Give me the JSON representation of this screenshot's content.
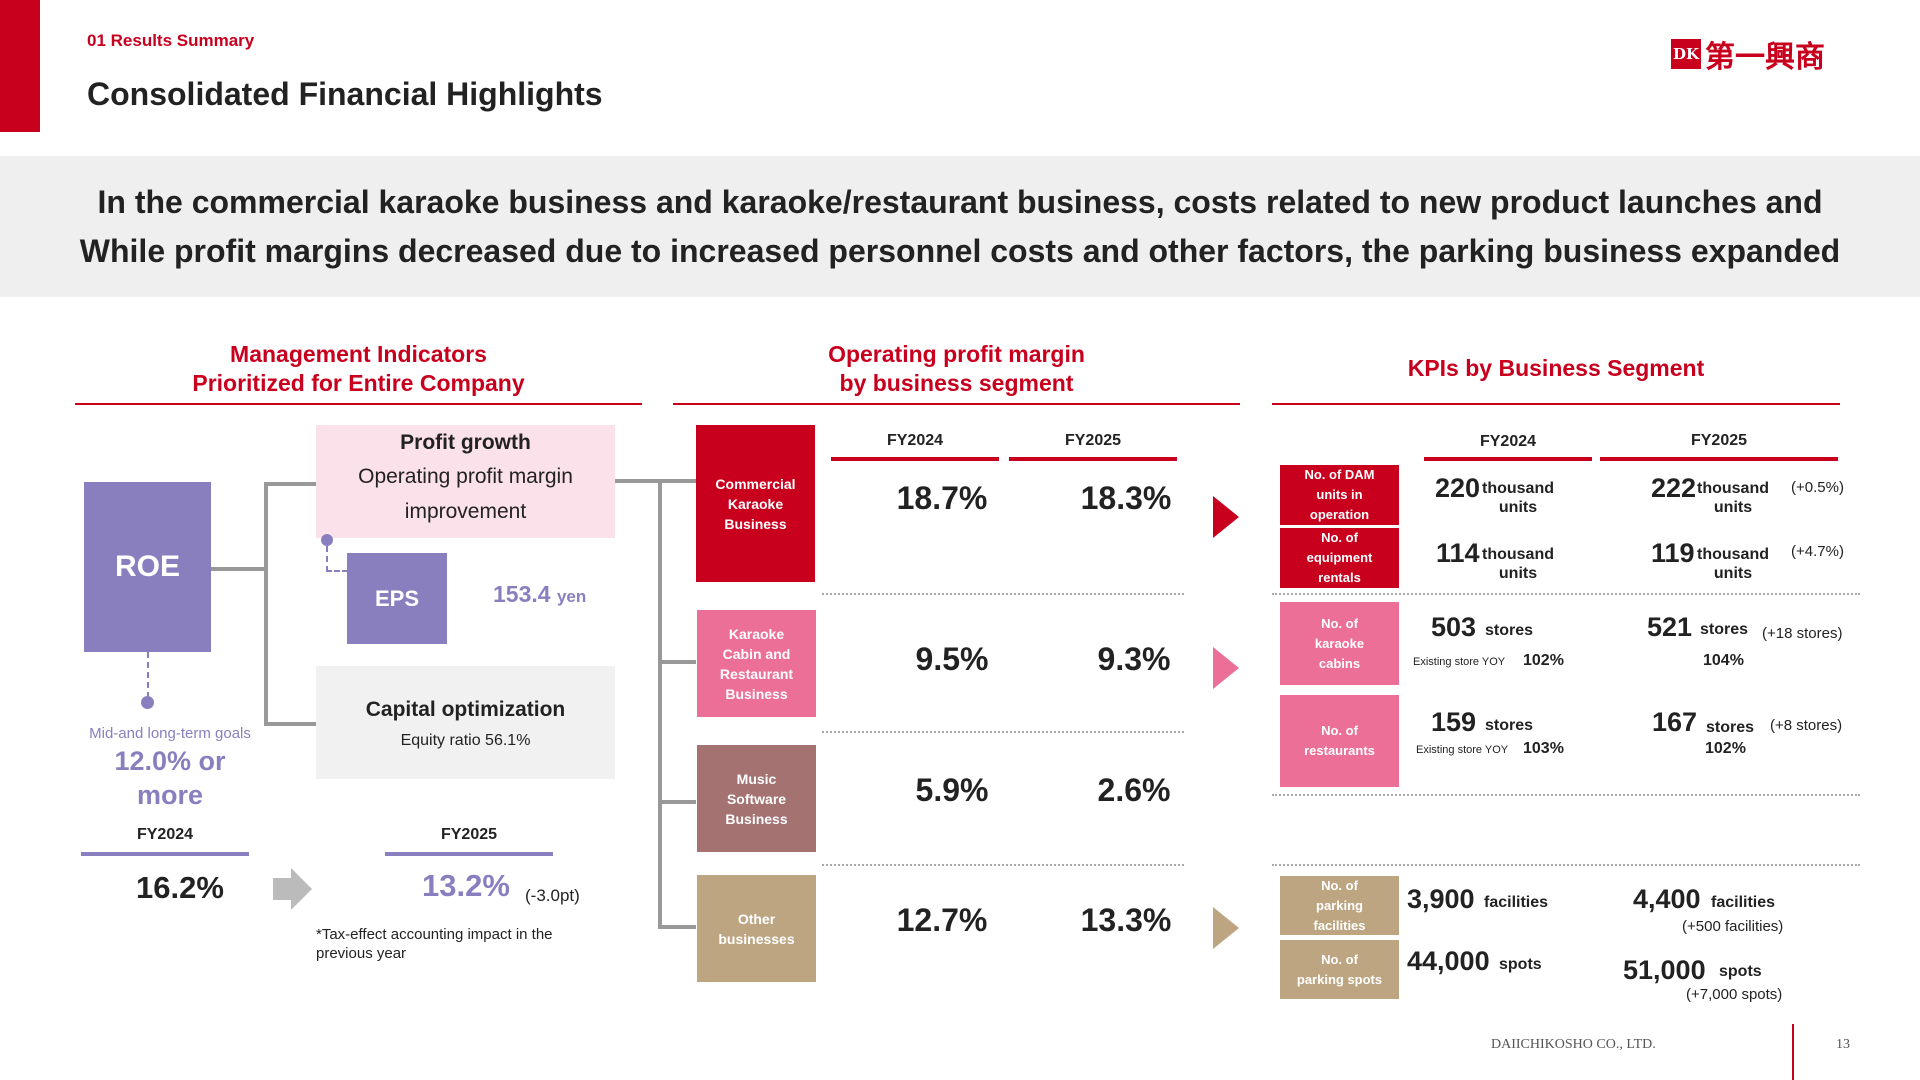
{
  "header": {
    "section": "01 Results Summary",
    "title": "Consolidated Financial Highlights",
    "logo_mark": "DK",
    "logo_text": "第一興商"
  },
  "banner": {
    "line1": "In the commercial karaoke business and karaoke/restaurant business, costs related to new product launches and",
    "line2": "While profit margins decreased due to increased personnel costs and other factors, the parking business expanded"
  },
  "management": {
    "title_line1": "Management Indicators",
    "title_line2": "Prioritized for Entire Company",
    "roe_label": "ROE",
    "goal_label": "Mid-and long-term goals",
    "goal_value_line1": "12.0% or",
    "goal_value_line2": "more",
    "profit_growth_title": "Profit growth",
    "profit_growth_line1": "Operating profit margin",
    "profit_growth_line2": "improvement",
    "eps_label": "EPS",
    "eps_value": "153.4",
    "eps_unit": "yen",
    "capital_title": "Capital optimization",
    "capital_sub": "Equity ratio 56.1%",
    "fy2024_label": "FY2024",
    "fy2025_label": "FY2025",
    "roe_fy2024": "16.2%",
    "roe_fy2025": "13.2%",
    "roe_change": "(-3.0pt)",
    "footnote_line1": "*Tax-effect accounting impact in the",
    "footnote_line2": "previous year"
  },
  "margin": {
    "title_line1": "Operating profit margin",
    "title_line2": "by business segment",
    "fy2024_label": "FY2024",
    "fy2025_label": "FY2025",
    "segments": [
      {
        "name_lines": [
          "Commercial",
          "Karaoke",
          "Business"
        ],
        "fy2024": "18.7%",
        "fy2025": "18.3%",
        "color": "#c8001e"
      },
      {
        "name_lines": [
          "Karaoke",
          "Cabin and",
          "Restaurant",
          "Business"
        ],
        "fy2024": "9.5%",
        "fy2025": "9.3%",
        "color": "#ec6f98"
      },
      {
        "name_lines": [
          "Music",
          "Software",
          "Business"
        ],
        "fy2024": "5.9%",
        "fy2025": "2.6%",
        "color": "#a37271"
      },
      {
        "name_lines": [
          "Other",
          "businesses"
        ],
        "fy2024": "12.7%",
        "fy2025": "13.3%",
        "color": "#bda582"
      }
    ]
  },
  "kpi": {
    "title": "KPIs by Business Segment",
    "fy2024_label": "FY2024",
    "fy2025_label": "FY2025",
    "dam": {
      "label": [
        "No. of DAM",
        "units in",
        "operation"
      ],
      "fy2024_num": "220",
      "fy2024_unit": [
        "thousand",
        "units"
      ],
      "fy2025_num": "222",
      "fy2025_unit": [
        "thousand",
        "units"
      ],
      "change": "(+0.5%)"
    },
    "rentals": {
      "label": [
        "No. of",
        "equipment",
        "rentals"
      ],
      "fy2024_num": "114",
      "fy2024_unit": [
        "thousand",
        "units"
      ],
      "fy2025_num": "119",
      "fy2025_unit": [
        "thousand",
        "units"
      ],
      "change": "(+4.7%)"
    },
    "cabins": {
      "label": [
        "No. of",
        "karaoke",
        "cabins"
      ],
      "fy2024_num": "503",
      "fy2024_unit": "stores",
      "fy2024_yoy_label": "Existing store YOY",
      "fy2024_yoy": "102%",
      "fy2025_num": "521",
      "fy2025_unit": "stores",
      "fy2025_change": "(+18 stores)",
      "fy2025_yoy": "104%"
    },
    "restaurants": {
      "label": [
        "No. of",
        "restaurants"
      ],
      "fy2024_num": "159",
      "fy2024_unit": "stores",
      "fy2024_yoy_label": "Existing store YOY",
      "fy2024_yoy": "103%",
      "fy2025_num": "167",
      "fy2025_unit": "stores",
      "fy2025_change": "(+8 stores)",
      "fy2025_yoy": "102%"
    },
    "parking_fac": {
      "label": [
        "No. of",
        "parking",
        "facilities"
      ],
      "fy2024_num": "3,900",
      "fy2024_unit": "facilities",
      "fy2025_num": "4,400",
      "fy2025_unit": "facilities",
      "fy2025_change": "(+500 facilities)"
    },
    "parking_spots": {
      "label": [
        "No. of",
        "parking spots"
      ],
      "fy2024_num": "44,000",
      "fy2024_unit": "spots",
      "fy2025_num": "51,000",
      "fy2025_unit": "spots",
      "fy2025_change": "(+7,000  spots)"
    }
  },
  "footer": {
    "company": "DAIICHIKOSHO CO., LTD.",
    "page": "13"
  },
  "colors": {
    "accent_red": "#c8001e",
    "roe_purple": "#8a7fbe",
    "karaoke_pink": "#ec6f98",
    "music_brown": "#a37271",
    "other_tan": "#bda582"
  }
}
